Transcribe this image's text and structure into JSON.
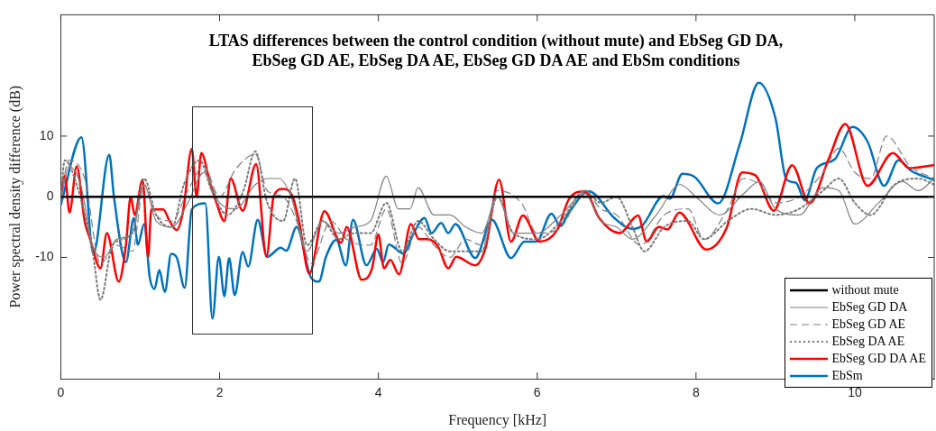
{
  "chart_data": {
    "type": "line",
    "title": "LTAS differences between the control condition (without mute) and EbSeg GD DA, EbSeg GD AE, EbSeg DA AE, EbSeg GD DA AE and EbSm conditions",
    "xlabel": "Frequency [kHz]",
    "ylabel": "Power spectral density difference (dB)",
    "xlim": [
      0,
      11
    ],
    "xticks": [
      0,
      2,
      4,
      6,
      8,
      10
    ],
    "ylim": [
      -30,
      30
    ],
    "yticks": [
      -10,
      0,
      10
    ],
    "grid": false,
    "legend": "bottom right",
    "marker": "none",
    "series": [
      {
        "name": "without mute",
        "color": "#000000",
        "line_style": "solid",
        "x": [
          0,
          11
        ],
        "values": [
          0,
          0
        ]
      },
      {
        "name": "EbSeg GD DA",
        "color": "#808080",
        "line_style": "solid",
        "x": [
          0,
          0.1,
          0.25,
          0.4,
          0.55,
          0.7,
          0.9,
          1.05,
          1.2,
          1.4,
          1.6,
          1.8,
          2.0,
          2.2,
          2.45,
          2.6,
          2.75,
          2.9,
          3.1,
          3.3,
          3.5,
          3.7,
          3.9,
          4.1,
          4.25,
          4.4,
          4.5,
          4.7,
          4.9,
          5.1,
          5.3,
          5.5,
          5.7,
          6.0,
          6.3,
          6.6,
          6.8,
          7.0,
          7.2,
          7.5,
          7.8,
          8.0,
          8.3,
          8.6,
          8.8,
          9.0,
          9.3,
          9.6,
          9.8,
          10.0,
          10.3,
          10.6,
          10.8,
          11
        ],
        "values": [
          -1,
          5,
          2,
          -8,
          -10,
          -7,
          -6,
          2,
          -4,
          -5,
          -1,
          4,
          -1,
          -2,
          2,
          3,
          3,
          0,
          -9,
          -4,
          -6,
          -5,
          -4,
          3.4,
          -2,
          -2,
          1.5,
          -3,
          -3,
          -5,
          -6,
          0,
          -6,
          -6,
          -3,
          0.5,
          -4,
          -5,
          -7,
          -3,
          2,
          0,
          -3,
          0.5,
          2.5,
          -2,
          -3,
          1.5,
          1,
          -4.5,
          -1,
          2.5,
          1,
          3
        ]
      },
      {
        "name": "EbSeg GD AE",
        "color": "#808080",
        "line_style": "dashed",
        "x": [
          0,
          0.1,
          0.3,
          0.5,
          0.7,
          0.9,
          1.05,
          1.2,
          1.4,
          1.6,
          1.8,
          2.0,
          2.2,
          2.45,
          2.6,
          2.8,
          3.0,
          3.15,
          3.4,
          3.6,
          3.9,
          4.1,
          4.3,
          4.5,
          4.7,
          4.9,
          5.1,
          5.3,
          5.5,
          5.8,
          6.0,
          6.3,
          6.6,
          6.8,
          7.0,
          7.3,
          7.6,
          7.9,
          8.1,
          8.4,
          8.6,
          8.8,
          9.0,
          9.3,
          9.6,
          9.8,
          10.0,
          10.2,
          10.4,
          10.7,
          11
        ],
        "values": [
          0,
          6,
          3,
          -11,
          -8,
          -9,
          2,
          -3,
          -4,
          1,
          5,
          0,
          4.5,
          7,
          1,
          0,
          -5,
          -11,
          -4,
          -7,
          -8,
          -2,
          -11,
          -5,
          -8,
          -10,
          -7,
          -8,
          1,
          -1,
          -6,
          -5,
          1,
          -2,
          -3,
          -8,
          -3,
          -2,
          -7,
          -2,
          3,
          2,
          -1,
          0,
          4,
          8,
          4,
          3,
          10,
          5,
          3
        ]
      },
      {
        "name": "EbSeg DA AE",
        "color": "#7a7a7a",
        "line_style": "dotted",
        "x": [
          0,
          0.05,
          0.2,
          0.4,
          0.5,
          0.65,
          0.9,
          1.05,
          1.2,
          1.4,
          1.55,
          1.75,
          1.9,
          2.1,
          2.3,
          2.45,
          2.6,
          2.8,
          2.95,
          3.1,
          3.3,
          3.5,
          3.7,
          3.9,
          4.1,
          4.3,
          4.5,
          4.7,
          4.9,
          5.1,
          5.3,
          5.5,
          5.7,
          6.0,
          6.3,
          6.6,
          6.8,
          7.0,
          7.2,
          7.35,
          7.6,
          7.9,
          8.1,
          8.4,
          8.7,
          9.0,
          9.3,
          9.6,
          9.8,
          10.0,
          10.2,
          10.5,
          10.8,
          11
        ],
        "values": [
          0,
          6,
          2,
          -9,
          -17,
          -8,
          -6,
          3,
          -3,
          -5,
          2,
          6,
          1,
          -3,
          1,
          7.5,
          -1,
          -4,
          3,
          -8,
          -4,
          -7,
          -6,
          -6,
          -1,
          -9,
          -4,
          -7,
          -9,
          -9,
          -9,
          0,
          -6,
          -7,
          -4,
          1,
          -1,
          0,
          -5,
          -9,
          -5,
          -4,
          -7,
          -4,
          -2,
          -3,
          -2,
          1,
          3,
          -1,
          -3,
          2,
          3,
          2
        ]
      },
      {
        "name": "EbSeg GD DA AE",
        "color": "#ff0000",
        "line_style": "solid",
        "x": [
          0,
          0.05,
          0.11,
          0.2,
          0.3,
          0.37,
          0.5,
          0.58,
          0.73,
          0.82,
          0.88,
          0.93,
          1.03,
          1.1,
          1.14,
          1.29,
          1.37,
          1.46,
          1.54,
          1.65,
          1.71,
          1.77,
          1.88,
          1.96,
          2.06,
          2.14,
          2.29,
          2.46,
          2.59,
          2.68,
          2.8,
          2.92,
          3.0,
          3.13,
          3.32,
          3.53,
          3.6,
          3.79,
          3.92,
          4.0,
          4.07,
          4.15,
          4.26,
          4.41,
          4.51,
          4.62,
          4.75,
          4.88,
          4.98,
          5.22,
          5.35,
          5.52,
          5.67,
          5.82,
          6.03,
          6.25,
          6.4,
          6.6,
          6.78,
          7.04,
          7.27,
          7.38,
          7.53,
          7.64,
          7.79,
          8.13,
          8.39,
          8.58,
          8.75,
          8.98,
          9.21,
          9.43,
          9.67,
          9.88,
          10.16,
          10.48,
          10.69,
          10.99
        ],
        "values": [
          0,
          3.5,
          -2.6,
          5,
          -4,
          -7,
          -11.8,
          -6,
          -14,
          -8,
          0,
          -3,
          2.8,
          -9.9,
          -2.1,
          -2.1,
          -4,
          -5.5,
          -2.4,
          7.9,
          0,
          7.2,
          2.3,
          -1,
          -4,
          3,
          -2.3,
          5.4,
          -9.9,
          0,
          1.3,
          0,
          -4,
          -12.7,
          -2.4,
          -7.6,
          -5,
          -13.7,
          -11.8,
          -6.2,
          -11.8,
          -10.4,
          -12.8,
          -4.5,
          -7,
          -7,
          -8.2,
          -11.8,
          -9.9,
          -11.3,
          -8.4,
          2.8,
          -7.4,
          -3.1,
          -7.4,
          -5.5,
          -0.4,
          0.9,
          -3.5,
          -6,
          -3.1,
          -7.4,
          -5,
          -5.4,
          -2.6,
          -8.7,
          -5,
          4,
          3.5,
          -2.3,
          5.2,
          -1.1,
          6.2,
          12,
          1.8,
          7.2,
          4.7,
          5.2
        ]
      },
      {
        "name": "EbSm",
        "color": "#0072bd",
        "line_style": "solid",
        "x": [
          0,
          0.26,
          0.41,
          0.61,
          0.67,
          0.82,
          0.92,
          0.97,
          1.05,
          1.12,
          1.18,
          1.24,
          1.31,
          1.39,
          1.46,
          1.56,
          1.65,
          1.82,
          1.91,
          1.99,
          2.06,
          2.12,
          2.19,
          2.29,
          2.36,
          2.48,
          2.6,
          2.77,
          2.84,
          2.97,
          3.15,
          3.25,
          3.34,
          3.47,
          3.59,
          3.68,
          3.85,
          3.98,
          4.06,
          4.13,
          4.32,
          4.43,
          4.58,
          4.67,
          4.79,
          4.88,
          4.97,
          5.22,
          5.43,
          5.67,
          5.84,
          5.99,
          6.18,
          6.29,
          6.4,
          6.65,
          6.97,
          7.19,
          7.32,
          7.59,
          7.67,
          7.83,
          7.98,
          8.28,
          8.55,
          8.79,
          9.0,
          9.14,
          9.26,
          9.37,
          9.52,
          9.75,
          9.97,
          10.16,
          10.37,
          10.55,
          10.72,
          10.99
        ],
        "values": [
          -1.3,
          9.8,
          -9.4,
          6.9,
          -0.1,
          -10.8,
          -3.5,
          -7.9,
          -4.5,
          -13.3,
          -15.2,
          -12.1,
          -15.7,
          -9.4,
          -10,
          -15,
          -2.1,
          -1.1,
          -20.1,
          -9.9,
          -16.4,
          -10.1,
          -16.2,
          -9.1,
          -11.5,
          -3.8,
          -9.9,
          -8.4,
          -8.9,
          -5,
          -13.3,
          -14,
          -9.9,
          -7.1,
          -11.3,
          -3.8,
          -11.3,
          -8.6,
          -10.8,
          -7.9,
          -9.4,
          -6.4,
          -3.5,
          -6,
          -4.3,
          -6,
          -4.5,
          -10.1,
          -3.8,
          -10.1,
          -7.4,
          -7.4,
          -2.8,
          -4.8,
          -2.6,
          0.9,
          -3.5,
          -5.3,
          -4.8,
          0.1,
          -0.3,
          3.8,
          3.3,
          -1.1,
          8.6,
          18.8,
          13,
          2.8,
          2.3,
          -0.6,
          4.7,
          6.2,
          11.5,
          9.1,
          1.8,
          6,
          4.2,
          2.8
        ]
      }
    ]
  }
}
